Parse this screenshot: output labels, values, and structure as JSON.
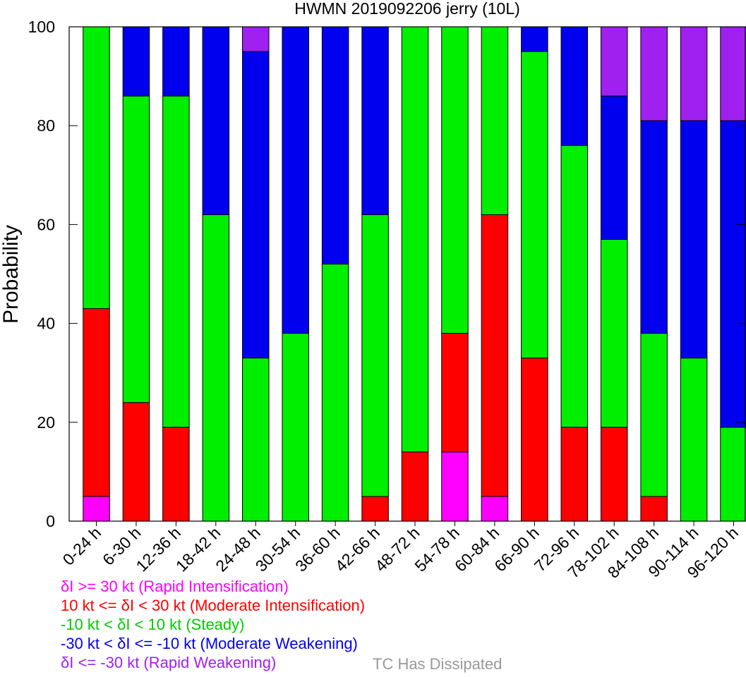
{
  "chart_data": {
    "type": "bar",
    "stacked": true,
    "title": "HWMN 2019092206 jerry (10L)",
    "xlabel": "",
    "ylabel": "Probability",
    "ylim": [
      0,
      100
    ],
    "yticks": [
      0,
      20,
      40,
      60,
      80,
      100
    ],
    "grid": false,
    "categories": [
      "0-24 h",
      "6-30 h",
      "12-36 h",
      "18-42 h",
      "24-48 h",
      "30-54 h",
      "36-60 h",
      "42-66 h",
      "48-72 h",
      "54-78 h",
      "60-84 h",
      "66-90 h",
      "72-96 h",
      "78-102 h",
      "84-108 h",
      "90-114 h",
      "96-120 h"
    ],
    "series": [
      {
        "name": "δI >= 30 kt (Rapid Intensification)",
        "color": "#ff00ff",
        "values": [
          5,
          0,
          0,
          0,
          0,
          0,
          0,
          0,
          0,
          14,
          5,
          0,
          0,
          0,
          0,
          0,
          0
        ]
      },
      {
        "name": "10 kt <= δI < 30 kt (Moderate Intensification)",
        "color": "#ff0000",
        "values": [
          38,
          24,
          19,
          0,
          0,
          0,
          0,
          5,
          14,
          24,
          57,
          33,
          19,
          19,
          5,
          0,
          0
        ]
      },
      {
        "name": "-10 kt < δI < 10 kt (Steady)",
        "color": "#00ee00",
        "values": [
          57,
          62,
          67,
          62,
          33,
          38,
          52,
          57,
          86,
          62,
          38,
          62,
          57,
          38,
          33,
          33,
          19
        ]
      },
      {
        "name": "-30 kt < δI <= -10 kt (Moderate Weakening)",
        "color": "#0000ee",
        "values": [
          0,
          14,
          14,
          38,
          62,
          62,
          48,
          38,
          0,
          0,
          0,
          5,
          24,
          29,
          43,
          48,
          62
        ]
      },
      {
        "name": "δI <= -30 kt (Rapid Weakening)",
        "color": "#a020f0",
        "values": [
          0,
          0,
          0,
          0,
          5,
          0,
          0,
          0,
          0,
          0,
          0,
          0,
          0,
          14,
          19,
          19,
          19
        ]
      }
    ],
    "legend_position": "bottom-left"
  },
  "legend": {
    "items": [
      {
        "label": "δI >= 30 kt (Rapid Intensification)",
        "color": "#ff00ff"
      },
      {
        "label": "10 kt <= δI < 30 kt (Moderate Intensification)",
        "color": "#ff0000"
      },
      {
        "label": "-10 kt < δI < 10 kt (Steady)",
        "color": "#00cc00"
      },
      {
        "label": "-30 kt < δI <= -10 kt (Moderate Weakening)",
        "color": "#0000ee"
      },
      {
        "label": "δI <= -30 kt (Rapid Weakening)",
        "color": "#a020f0"
      }
    ],
    "dissipated_label": "TC Has Dissipated",
    "dissipated_color": "#999999"
  }
}
